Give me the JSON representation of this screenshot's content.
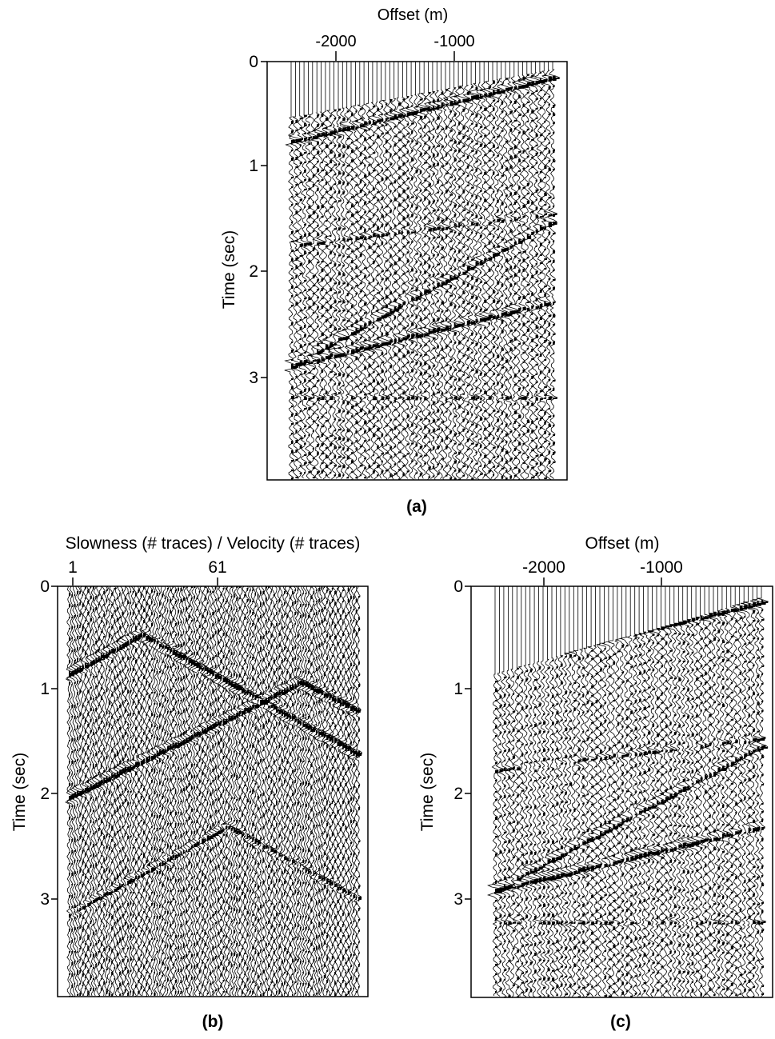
{
  "colors": {
    "ink": "#000000",
    "paper": "#ffffff"
  },
  "panels": [
    {
      "id": "a",
      "caption": "(a)",
      "xlabel": "Offset (m)",
      "ylabel": "Time (sec)",
      "x_ticks": [
        "-2000",
        "-1000"
      ],
      "y_ticks": [
        "0",
        "1",
        "2",
        "3"
      ],
      "content": "seismic-shot-gather"
    },
    {
      "id": "b",
      "caption": "(b)",
      "xlabel": "Slowness (# traces) / Velocity (# traces)",
      "ylabel": "Time (sec)",
      "x_ticks": [
        "1",
        "61"
      ],
      "y_ticks": [
        "0",
        "1",
        "2",
        "3"
      ],
      "content": "seismic-transform-panel"
    },
    {
      "id": "c",
      "caption": "(c)",
      "xlabel": "Offset (m)",
      "ylabel": "Time (sec)",
      "x_ticks": [
        "-2000",
        "-1000"
      ],
      "y_ticks": [
        "0",
        "1",
        "2",
        "3"
      ],
      "content": "seismic-shot-gather-filtered"
    }
  ]
}
